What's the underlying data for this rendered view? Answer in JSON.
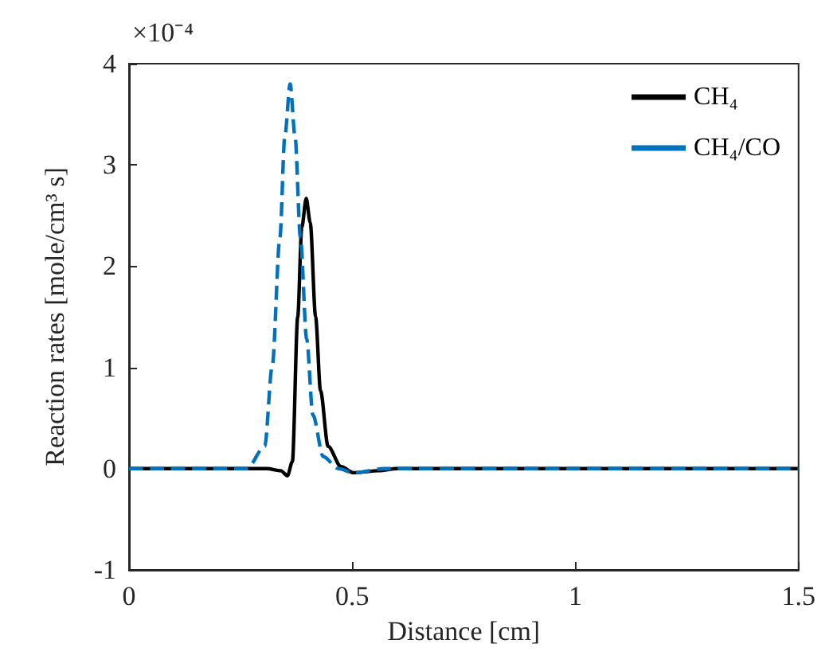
{
  "chart_data": {
    "type": "line",
    "xlabel": "Distance [cm]",
    "ylabel": "Reaction rates [mole/cm³ s]",
    "annotations": [
      "×10⁻⁴"
    ],
    "xlim": [
      0,
      1.5
    ],
    "xticks": [
      0,
      0.5,
      1,
      1.5
    ],
    "ylim": [
      -1,
      4
    ],
    "yticks": [
      -1,
      0,
      1,
      2,
      3,
      4
    ],
    "grid": false,
    "legend": "top right",
    "marker": "none",
    "series": [
      {
        "name": "CH₄",
        "color": "#000000",
        "line_style": "solid",
        "x": [
          0,
          0.2,
          0.309,
          0.34,
          0.355,
          0.366,
          0.378,
          0.387,
          0.397,
          0.406,
          0.418,
          0.429,
          0.446,
          0.475,
          0.503,
          0.56,
          0.6,
          1,
          1.5
        ],
        "values": [
          0,
          0,
          0,
          -0.02,
          -0.07,
          0.07,
          1.5,
          2.38,
          2.67,
          2.43,
          1.5,
          0.77,
          0.22,
          0.02,
          -0.04,
          -0.02,
          0,
          0,
          0
        ]
      },
      {
        "name": "CH₄/CO",
        "color": "#0072bd",
        "line_style": "dashed",
        "x": [
          0,
          0.2,
          0.264,
          0.304,
          0.321,
          0.338,
          0.349,
          0.361,
          0.372,
          0.384,
          0.398,
          0.412,
          0.435,
          0.469,
          0.503,
          0.572,
          1,
          1.5
        ],
        "values": [
          0,
          0,
          0,
          0.22,
          1.02,
          2.28,
          3.28,
          3.8,
          3.28,
          2.28,
          1.28,
          0.53,
          0.12,
          0,
          -0.04,
          0,
          0,
          0
        ]
      }
    ]
  }
}
